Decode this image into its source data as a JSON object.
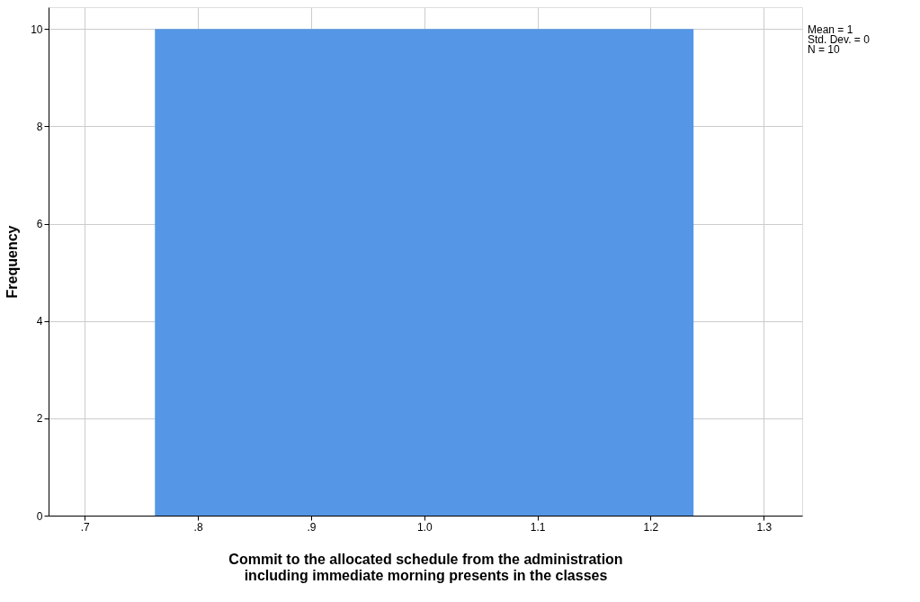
{
  "chart_data": {
    "type": "histogram",
    "xlabel": "Commit to the allocated schedule from the administration including immediate morning presents in the classes",
    "ylabel": "Frequency",
    "bins": [
      0.762,
      1.238
    ],
    "values": [
      10
    ],
    "color": "#5596e6",
    "xlim": [
      0.668,
      1.334
    ],
    "xticks": [
      {
        "value": 0.7,
        "label": ".7"
      },
      {
        "value": 0.8,
        "label": ".8"
      },
      {
        "value": 0.9,
        "label": ".9"
      },
      {
        "value": 1.0,
        "label": "1.0"
      },
      {
        "value": 1.1,
        "label": "1.1"
      },
      {
        "value": 1.2,
        "label": "1.2"
      },
      {
        "value": 1.3,
        "label": "1.3"
      }
    ],
    "ylim": [
      0,
      10.45
    ],
    "yticks": [
      0,
      2,
      4,
      6,
      8,
      10
    ],
    "grid": true,
    "annotations": [
      "Mean = 1",
      "Std. Dev. = 0",
      "N = 10"
    ]
  }
}
